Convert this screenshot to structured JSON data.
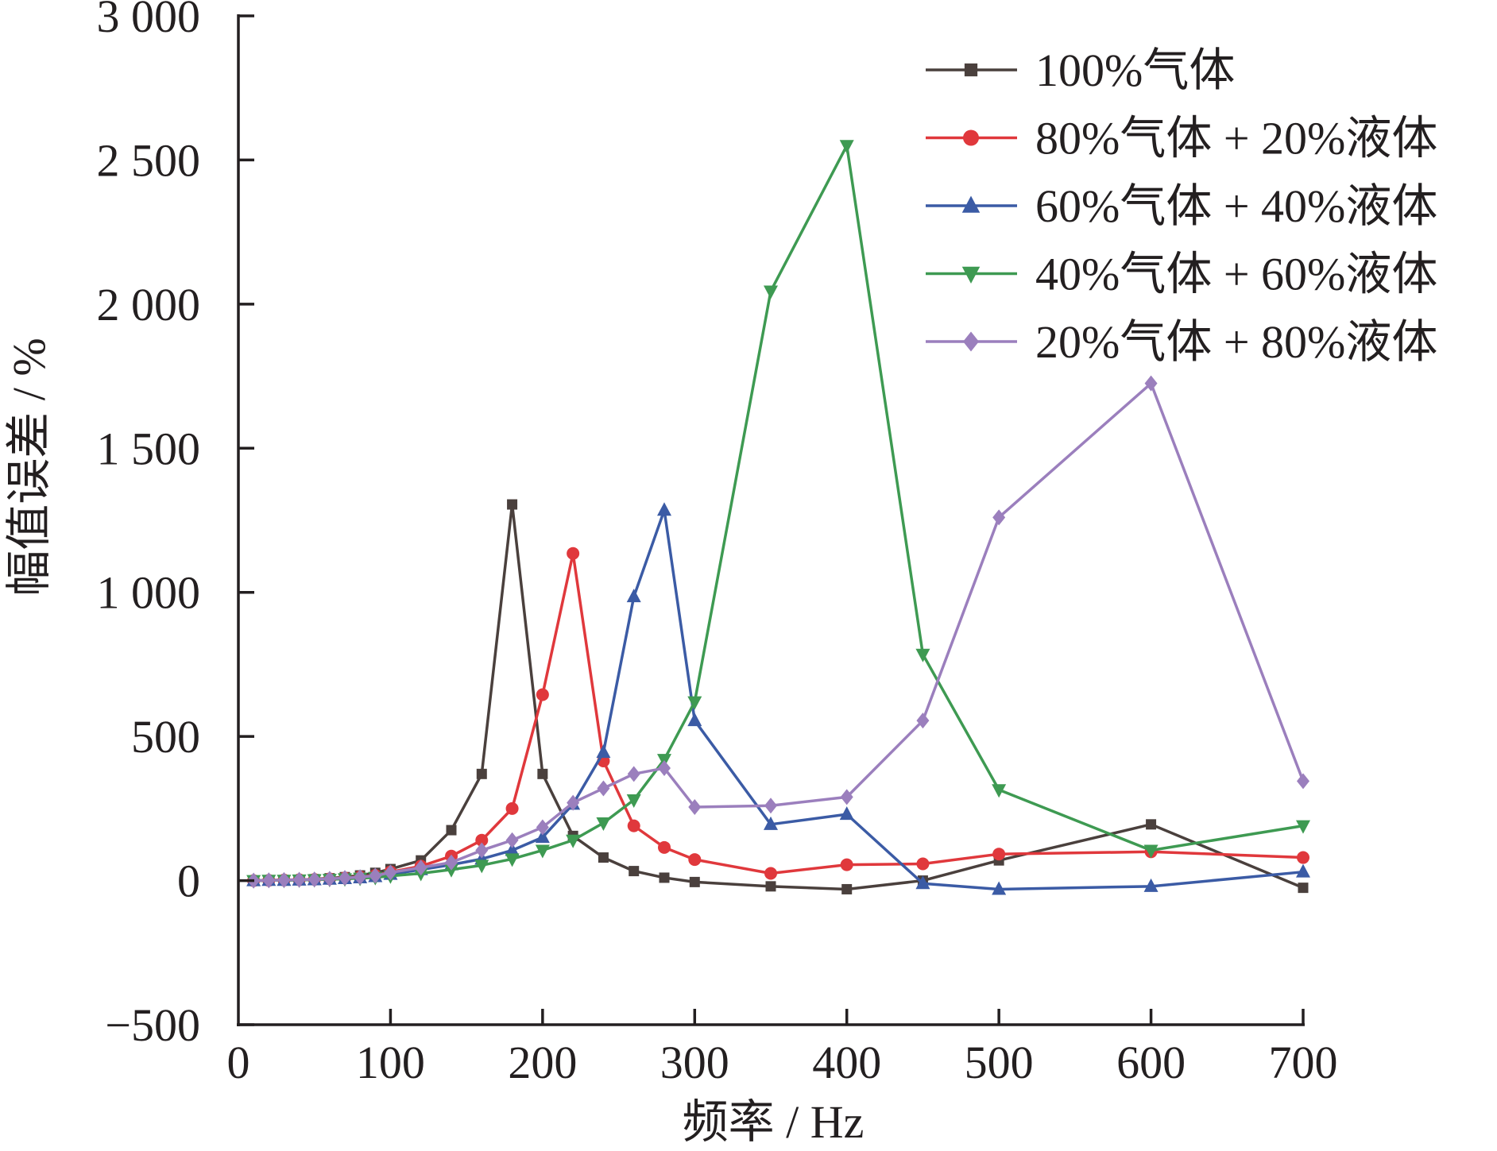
{
  "chart_data": {
    "type": "line",
    "xlabel": "频率 / Hz",
    "ylabel": "幅值误差 / %",
    "xlim": [
      0,
      700
    ],
    "ylim": [
      -500,
      3000
    ],
    "x_ticks": [
      0,
      100,
      200,
      300,
      400,
      500,
      600,
      700
    ],
    "x_tick_labels": [
      "0",
      "100",
      "200",
      "300",
      "400",
      "500",
      "600",
      "700"
    ],
    "y_ticks": [
      -500,
      0,
      500,
      1000,
      1500,
      2000,
      2500,
      3000
    ],
    "y_tick_labels": [
      "−500",
      "0",
      "500",
      "1 000",
      "1 500",
      "2 000",
      "2 500",
      "3 000"
    ],
    "grid": false,
    "legend_position": "top-right",
    "x": [
      10,
      20,
      30,
      40,
      50,
      60,
      70,
      80,
      90,
      100,
      120,
      140,
      160,
      180,
      200,
      220,
      240,
      260,
      280,
      300,
      350,
      400,
      450,
      500,
      600,
      700
    ],
    "series": [
      {
        "name": "100%气体",
        "color": "#4a403d",
        "marker": "square",
        "values": [
          0,
          1,
          2,
          3,
          5,
          8,
          12,
          18,
          27,
          40,
          70,
          175,
          370,
          1305,
          370,
          155,
          80,
          33,
          10,
          -5,
          -20,
          -30,
          0,
          70,
          195,
          -25
        ]
      },
      {
        "name": "80%气体 + 20%液体",
        "color": "#e0383c",
        "marker": "circle",
        "values": [
          0,
          1,
          2,
          3,
          4,
          6,
          9,
          13,
          18,
          30,
          50,
          85,
          140,
          250,
          645,
          1135,
          415,
          190,
          115,
          73,
          25,
          55,
          58,
          92,
          100,
          80
        ]
      },
      {
        "name": "60%气体 + 40%液体",
        "color": "#3b5ba5",
        "marker": "triangle-up",
        "values": [
          0,
          1,
          1,
          2,
          3,
          5,
          7,
          10,
          14,
          22,
          38,
          55,
          75,
          105,
          150,
          265,
          445,
          985,
          1285,
          555,
          195,
          230,
          -10,
          -30,
          -20,
          30
        ]
      },
      {
        "name": "40%气体 + 60%液体",
        "color": "#3e9a52",
        "marker": "triangle-down",
        "values": [
          0,
          1,
          1,
          2,
          3,
          4,
          6,
          8,
          11,
          16,
          25,
          38,
          53,
          75,
          105,
          140,
          200,
          280,
          420,
          620,
          2045,
          2550,
          785,
          315,
          105,
          190
        ]
      },
      {
        "name": "20%气体 + 80%液体",
        "color": "#9b7fbd",
        "marker": "diamond",
        "values": [
          0,
          1,
          2,
          3,
          4,
          6,
          9,
          12,
          17,
          28,
          45,
          63,
          105,
          140,
          185,
          270,
          320,
          370,
          390,
          255,
          260,
          290,
          555,
          1260,
          1725,
          345
        ]
      }
    ]
  }
}
